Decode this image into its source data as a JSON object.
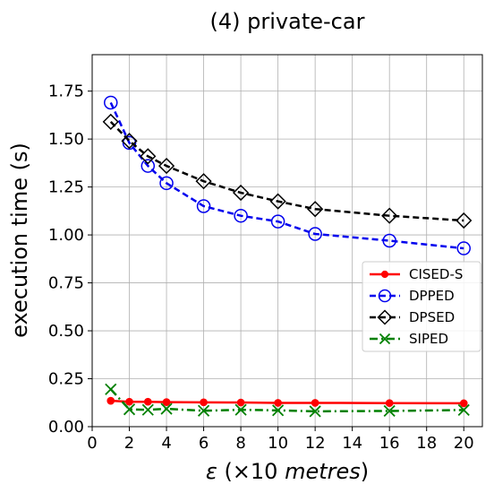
{
  "chart_data": {
    "type": "line",
    "title": "(4) private-car",
    "xlabel_parts": {
      "symbol": "ε",
      "open": " (×10 ",
      "unit": "metres",
      "close": ")"
    },
    "ylabel": "execution time (s)",
    "xlim": [
      0,
      21
    ],
    "ylim": [
      0,
      1.94
    ],
    "x_ticks": [
      0,
      2,
      4,
      6,
      8,
      10,
      12,
      14,
      16,
      18,
      20
    ],
    "y_ticks": [
      0.0,
      0.25,
      0.5,
      0.75,
      1.0,
      1.25,
      1.5,
      1.75
    ],
    "y_tick_labels": [
      "0.00",
      "0.25",
      "0.50",
      "0.75",
      "1.00",
      "1.25",
      "1.50",
      "1.75"
    ],
    "grid": true,
    "legend_position": "center-right",
    "x": [
      1,
      2,
      3,
      4,
      6,
      8,
      10,
      12,
      16,
      20
    ],
    "series": [
      {
        "name": "CISED-S",
        "color": "#ff0000",
        "marker": "filled-circle",
        "line_style": "solid",
        "values": [
          0.135,
          0.13,
          0.13,
          0.128,
          0.127,
          0.126,
          0.124,
          0.124,
          0.123,
          0.122
        ]
      },
      {
        "name": "DPPED",
        "color": "#0000ee",
        "marker": "open-circle",
        "line_style": "dashed",
        "values": [
          1.69,
          1.48,
          1.36,
          1.27,
          1.15,
          1.1,
          1.07,
          1.005,
          0.97,
          0.93
        ]
      },
      {
        "name": "DPSED",
        "color": "#000000",
        "marker": "open-diamond",
        "line_style": "dashed",
        "values": [
          1.59,
          1.49,
          1.41,
          1.36,
          1.28,
          1.22,
          1.175,
          1.135,
          1.1,
          1.075
        ]
      },
      {
        "name": "SIPED",
        "color": "#008000",
        "marker": "x",
        "line_style": "dashdot",
        "values": [
          0.195,
          0.09,
          0.088,
          0.093,
          0.083,
          0.088,
          0.085,
          0.08,
          0.082,
          0.087
        ]
      }
    ]
  }
}
